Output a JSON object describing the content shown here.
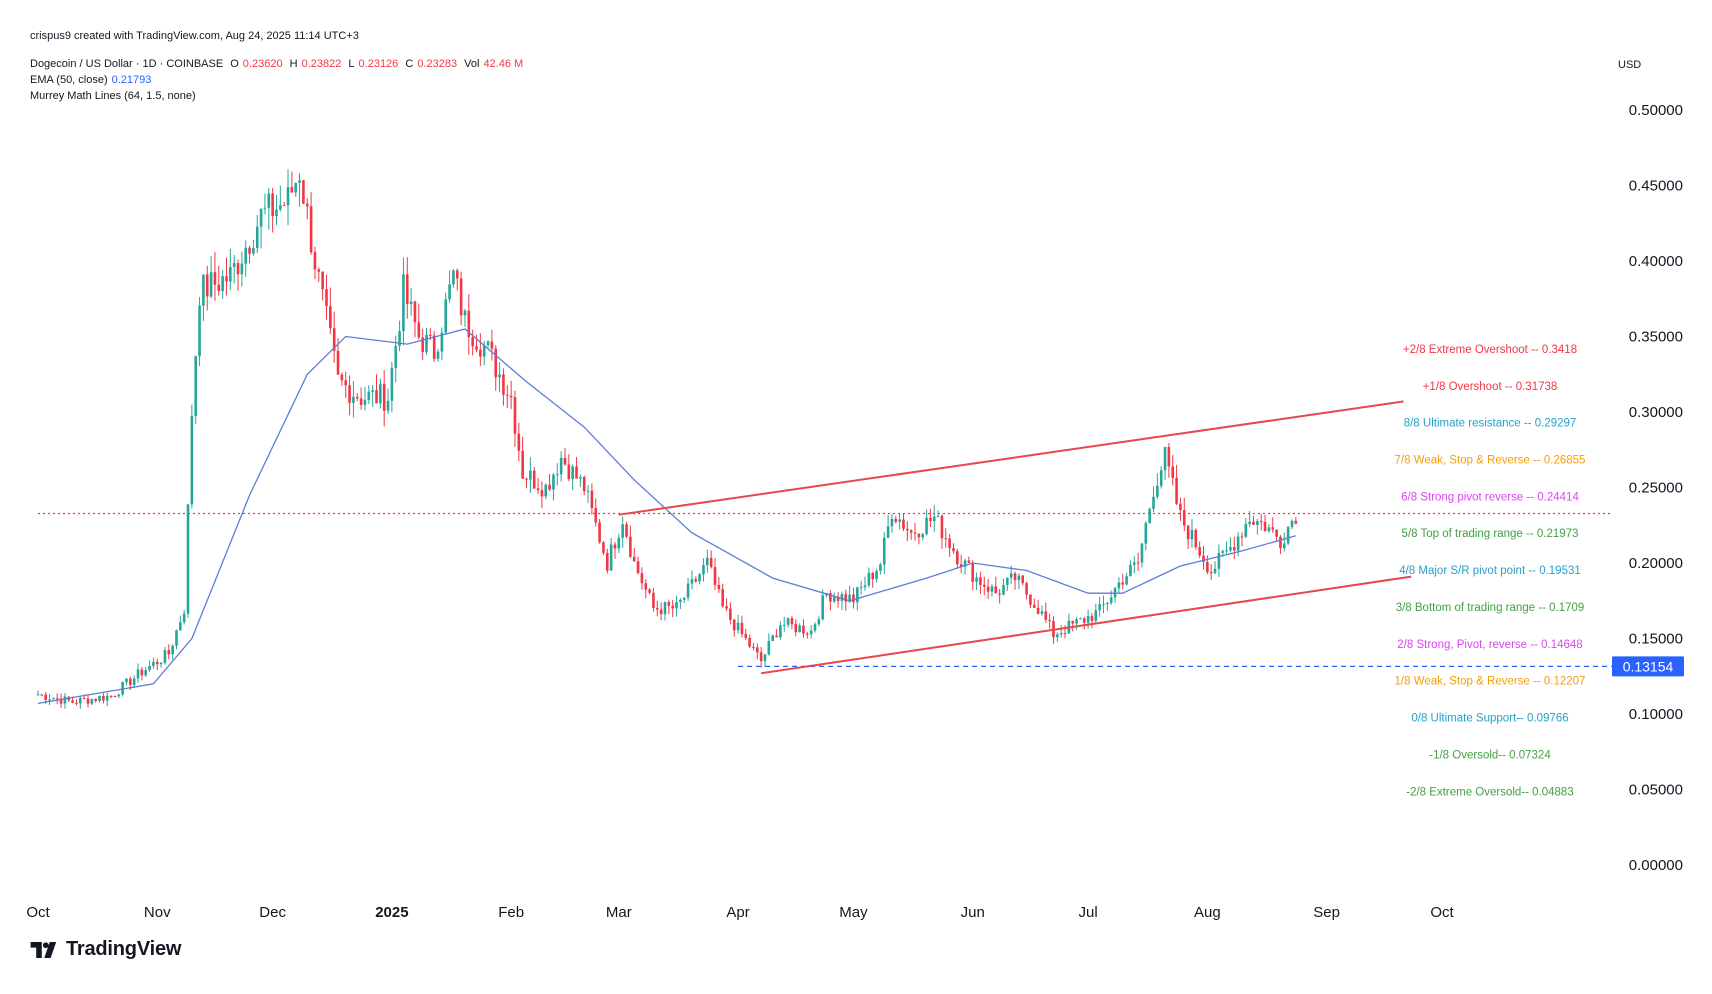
{
  "header": {
    "created_by": "crispus9 created with TradingView.com, Aug 24, 2025 11:14 UTC+3",
    "symbol_line": "Dogecoin / US Dollar · 1D · COINBASE",
    "ohlc": {
      "o_label": "O",
      "o": "0.23620",
      "h_label": "H",
      "h": "0.23822",
      "l_label": "L",
      "l": "0.23126",
      "c_label": "C",
      "c": "0.23283",
      "vol_label": "Vol",
      "vol": "42.46 M"
    },
    "ema_label": "EMA (50, close)",
    "ema_value": "0.21793",
    "murrey_label": "Murrey Math Lines (64, 1.5, none)",
    "currency": "USD"
  },
  "brand": {
    "name": "TradingView"
  },
  "colors": {
    "up": "#26a69a",
    "down": "#f23645",
    "ema": "#5b7fd6",
    "trend": "#e5484d",
    "price_tag": "#2962ff",
    "grid_text": "#131722"
  },
  "chart_data": {
    "type": "candlestick",
    "ylim": [
      0.0,
      0.52
    ],
    "y_ticks": [
      "0.50000",
      "0.45000",
      "0.40000",
      "0.35000",
      "0.30000",
      "0.25000",
      "0.20000",
      "0.15000",
      "0.10000",
      "0.05000",
      "0.00000"
    ],
    "y_tick_values": [
      0.5,
      0.45,
      0.4,
      0.35,
      0.3,
      0.25,
      0.2,
      0.15,
      0.1,
      0.05,
      0.0
    ],
    "x_ticks": [
      {
        "label": "Oct",
        "date": "2024-10-01"
      },
      {
        "label": "Nov",
        "date": "2024-11-01"
      },
      {
        "label": "Dec",
        "date": "2024-12-01"
      },
      {
        "label": "2025",
        "date": "2025-01-01",
        "bold": true
      },
      {
        "label": "Feb",
        "date": "2025-02-01"
      },
      {
        "label": "Mar",
        "date": "2025-03-01"
      },
      {
        "label": "Apr",
        "date": "2025-04-01"
      },
      {
        "label": "May",
        "date": "2025-05-01"
      },
      {
        "label": "Jun",
        "date": "2025-06-01"
      },
      {
        "label": "Jul",
        "date": "2025-07-01"
      },
      {
        "label": "Aug",
        "date": "2025-08-01"
      },
      {
        "label": "Sep",
        "date": "2025-09-01"
      },
      {
        "label": "Oct",
        "date": "2025-10-01"
      }
    ],
    "current_price": 0.2328,
    "price_tag": {
      "label": "0.13154",
      "value": 0.13154
    },
    "key_points": [
      [
        "2024-10-01",
        0.113
      ],
      [
        "2024-10-10",
        0.108
      ],
      [
        "2024-10-20",
        0.112
      ],
      [
        "2024-10-28",
        0.128
      ],
      [
        "2024-11-04",
        0.14
      ],
      [
        "2024-11-08",
        0.17
      ],
      [
        "2024-11-10",
        0.3
      ],
      [
        "2024-11-12",
        0.38
      ],
      [
        "2024-11-20",
        0.39
      ],
      [
        "2024-11-28",
        0.43
      ],
      [
        "2024-12-05",
        0.44
      ],
      [
        "2024-12-08",
        0.46
      ],
      [
        "2024-12-12",
        0.4
      ],
      [
        "2024-12-18",
        0.32
      ],
      [
        "2024-12-24",
        0.31
      ],
      [
        "2024-12-31",
        0.31
      ],
      [
        "2025-01-04",
        0.38
      ],
      [
        "2025-01-08",
        0.35
      ],
      [
        "2025-01-12",
        0.34
      ],
      [
        "2025-01-17",
        0.39
      ],
      [
        "2025-01-20",
        0.36
      ],
      [
        "2025-01-26",
        0.34
      ],
      [
        "2025-02-01",
        0.31
      ],
      [
        "2025-02-04",
        0.26
      ],
      [
        "2025-02-10",
        0.25
      ],
      [
        "2025-02-14",
        0.27
      ],
      [
        "2025-02-20",
        0.25
      ],
      [
        "2025-02-26",
        0.2
      ],
      [
        "2025-03-02",
        0.23
      ],
      [
        "2025-03-05",
        0.2
      ],
      [
        "2025-03-10",
        0.17
      ],
      [
        "2025-03-16",
        0.17
      ],
      [
        "2025-03-24",
        0.2
      ],
      [
        "2025-03-28",
        0.17
      ],
      [
        "2025-04-07",
        0.135
      ],
      [
        "2025-04-12",
        0.16
      ],
      [
        "2025-04-20",
        0.155
      ],
      [
        "2025-04-24",
        0.18
      ],
      [
        "2025-05-01",
        0.176
      ],
      [
        "2025-05-08",
        0.2
      ],
      [
        "2025-05-11",
        0.235
      ],
      [
        "2025-05-16",
        0.22
      ],
      [
        "2025-05-22",
        0.23
      ],
      [
        "2025-05-28",
        0.205
      ],
      [
        "2025-06-02",
        0.19
      ],
      [
        "2025-06-07",
        0.18
      ],
      [
        "2025-06-12",
        0.19
      ],
      [
        "2025-06-18",
        0.17
      ],
      [
        "2025-06-22",
        0.153
      ],
      [
        "2025-06-28",
        0.16
      ],
      [
        "2025-07-04",
        0.168
      ],
      [
        "2025-07-10",
        0.19
      ],
      [
        "2025-07-14",
        0.2
      ],
      [
        "2025-07-18",
        0.25
      ],
      [
        "2025-07-21",
        0.27
      ],
      [
        "2025-07-25",
        0.23
      ],
      [
        "2025-08-02",
        0.195
      ],
      [
        "2025-08-07",
        0.21
      ],
      [
        "2025-08-12",
        0.23
      ],
      [
        "2025-08-16",
        0.225
      ],
      [
        "2025-08-20",
        0.215
      ],
      [
        "2025-08-24",
        0.233
      ]
    ],
    "ema_points": [
      [
        "2024-10-01",
        0.107
      ],
      [
        "2024-10-31",
        0.12
      ],
      [
        "2024-11-10",
        0.15
      ],
      [
        "2024-11-25",
        0.245
      ],
      [
        "2024-12-10",
        0.325
      ],
      [
        "2024-12-20",
        0.35
      ],
      [
        "2025-01-05",
        0.345
      ],
      [
        "2025-01-20",
        0.355
      ],
      [
        "2025-02-05",
        0.32
      ],
      [
        "2025-02-20",
        0.29
      ],
      [
        "2025-03-05",
        0.255
      ],
      [
        "2025-03-20",
        0.22
      ],
      [
        "2025-04-10",
        0.19
      ],
      [
        "2025-04-30",
        0.175
      ],
      [
        "2025-05-20",
        0.19
      ],
      [
        "2025-06-01",
        0.2
      ],
      [
        "2025-06-15",
        0.195
      ],
      [
        "2025-07-01",
        0.18
      ],
      [
        "2025-07-10",
        0.18
      ],
      [
        "2025-07-25",
        0.198
      ],
      [
        "2025-08-10",
        0.208
      ],
      [
        "2025-08-24",
        0.218
      ]
    ],
    "trendlines": [
      {
        "from": [
          "2025-03-01",
          0.232
        ],
        "to": [
          "2025-09-21",
          0.307
        ]
      },
      {
        "from": [
          "2025-04-07",
          0.127
        ],
        "to": [
          "2025-09-23",
          0.191
        ]
      }
    ],
    "h_lines": [
      {
        "value": 0.2328,
        "style": "dotted",
        "color": "#f23645",
        "from": "2024-10-01"
      },
      {
        "value": 0.13154,
        "style": "dashed",
        "color": "#2962ff",
        "from": "2025-04-01"
      }
    ],
    "murrey_lines": [
      {
        "label": "+2/8 Extreme Overshoot --  0.3418",
        "value": 0.3418,
        "color": "#f23645"
      },
      {
        "label": "+1/8 Overshoot --  0.31738",
        "value": 0.31738,
        "color": "#f23645"
      },
      {
        "label": "8/8 Ultimate resistance --  0.29297",
        "value": 0.29297,
        "color": "#26a0c9"
      },
      {
        "label": "7/8 Weak, Stop & Reverse --  0.26855",
        "value": 0.26855,
        "color": "#f59e0b"
      },
      {
        "label": "6/8 Strong pivot reverse --  0.24414",
        "value": 0.24414,
        "color": "#d946ef"
      },
      {
        "label": "5/8 Top of trading range --  0.21973",
        "value": 0.21973,
        "color": "#43a047"
      },
      {
        "label": "4/8 Major S/R pivot point --  0.19531",
        "value": 0.19531,
        "color": "#26a0c9"
      },
      {
        "label": "3/8 Bottom of trading range --  0.1709",
        "value": 0.1709,
        "color": "#43a047"
      },
      {
        "label": "2/8 Strong, Pivot, reverse --  0.14648",
        "value": 0.14648,
        "color": "#d946ef"
      },
      {
        "label": "1/8 Weak, Stop & Reverse --  0.12207",
        "value": 0.12207,
        "color": "#f59e0b"
      },
      {
        "label": "0/8 Ultimate Support--  0.09766",
        "value": 0.09766,
        "color": "#26a0c9"
      },
      {
        "label": "-1/8 Oversold--  0.07324",
        "value": 0.07324,
        "color": "#43a047"
      },
      {
        "label": "-2/8 Extreme Oversold--  0.04883",
        "value": 0.04883,
        "color": "#43a047"
      }
    ]
  }
}
